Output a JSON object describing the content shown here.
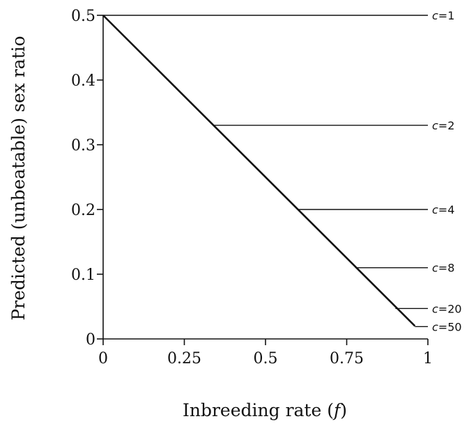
{
  "chart_data": {
    "type": "line",
    "xlabel_text": "Inbreeding rate (",
    "xlabel_var": "f",
    "xlabel_close": ")",
    "ylabel": "Predicted (unbeatable) sex ratio",
    "xlim": [
      0,
      1
    ],
    "ylim": [
      0,
      0.5
    ],
    "x_ticks": [
      0,
      0.25,
      0.5,
      0.75,
      1
    ],
    "x_tick_labels": [
      "0",
      "0.25",
      "0.5",
      "0.75",
      "1"
    ],
    "y_ticks": [
      0,
      0.1,
      0.2,
      0.3,
      0.4,
      0.5
    ],
    "y_tick_labels": [
      "0",
      "0.1",
      "0.2",
      "0.3",
      "0.4",
      "0.5"
    ],
    "grid": false,
    "diagonal_line": {
      "x": [
        0,
        0.96
      ],
      "y": [
        0.5,
        0.02
      ]
    },
    "series": [
      {
        "label": "c=1",
        "c": 1,
        "y": 0.5,
        "x_start": 0.0,
        "x_end": 1.0
      },
      {
        "label": "c=2",
        "c": 2,
        "y": 0.33,
        "x_start": 0.34,
        "x_end": 1.0
      },
      {
        "label": "c=4",
        "c": 4,
        "y": 0.2,
        "x_start": 0.6,
        "x_end": 1.0
      },
      {
        "label": "c=8",
        "c": 8,
        "y": 0.11,
        "x_start": 0.78,
        "x_end": 1.0
      },
      {
        "label": "c=20",
        "c": 20,
        "y": 0.047,
        "x_start": 0.9,
        "x_end": 1.0
      },
      {
        "label": "c=50",
        "c": 50,
        "y": 0.019,
        "x_start": 0.96,
        "x_end": 1.0
      }
    ]
  }
}
